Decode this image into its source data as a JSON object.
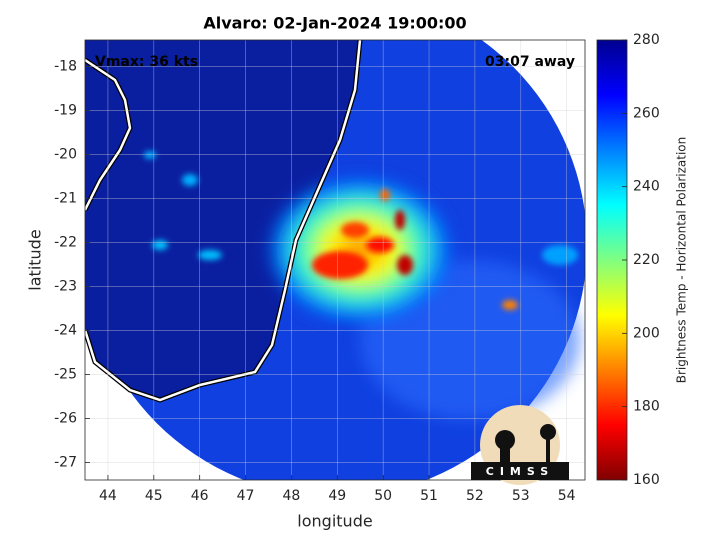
{
  "title": "Alvaro: 02-Jan-2024 19:00:00",
  "annotations": {
    "vmax": "Vmax: 36 kts",
    "time_away": "03:07 away"
  },
  "map": {
    "xlabel": "longitude",
    "ylabel": "latitude",
    "xlim": [
      43.5,
      54.4
    ],
    "ylim": [
      -27.4,
      -17.4
    ],
    "xticks": [
      44,
      45,
      46,
      47,
      48,
      49,
      50,
      51,
      52,
      53,
      54
    ],
    "yticks": [
      -27,
      -26,
      -25,
      -24,
      -23,
      -22,
      -21,
      -20,
      -19,
      -18
    ],
    "grid": true
  },
  "colorbar": {
    "label": "Brightness Temp - Horizontal Polarization",
    "lim": [
      160,
      280
    ],
    "ticks": [
      160,
      180,
      200,
      220,
      240,
      260,
      280
    ],
    "colors": [
      "#800000",
      "#ff0000",
      "#ff8000",
      "#ffff00",
      "#80ff80",
      "#00ffff",
      "#0080ff",
      "#0000ff",
      "#00008f"
    ]
  },
  "logo": {
    "text": "CIMSS"
  }
}
